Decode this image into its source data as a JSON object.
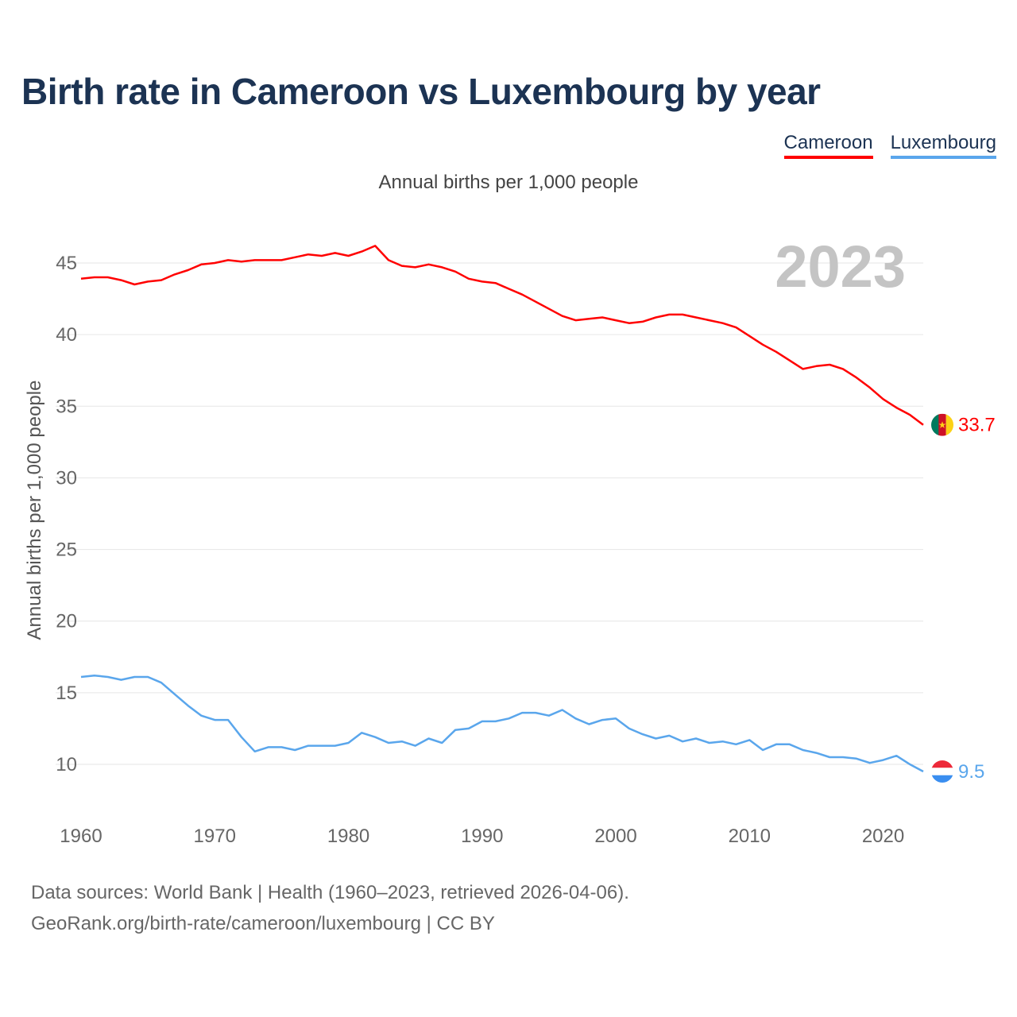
{
  "title": "Birth rate in Cameroon vs Luxembourg by year",
  "subtitle": "Annual births per 1,000 people",
  "legend": [
    {
      "label": "Cameroon",
      "color": "#ff0000"
    },
    {
      "label": "Luxembourg",
      "color": "#5aa6ec"
    }
  ],
  "year_watermark": "2023",
  "footer": {
    "line1": "Data sources: World Bank | Health (1960–2023, retrieved 2026-04-06).",
    "line2": "GeoRank.org/birth-rate/cameroon/luxembourg | CC BY"
  },
  "end_labels": {
    "cameroon": "33.7",
    "luxembourg": "9.5"
  },
  "chart_data": {
    "type": "line",
    "title": "Birth rate in Cameroon vs Luxembourg by year",
    "xlabel": "",
    "ylabel": "Annual births per 1,000 people",
    "xlim": [
      1960,
      2023
    ],
    "ylim": [
      7,
      48
    ],
    "yticks": [
      10,
      15,
      20,
      25,
      30,
      35,
      40,
      45
    ],
    "xticks": [
      1960,
      1970,
      1980,
      1990,
      2000,
      2010,
      2020
    ],
    "grid": true,
    "legend_position": "top-right",
    "x": [
      1960,
      1961,
      1962,
      1963,
      1964,
      1965,
      1966,
      1967,
      1968,
      1969,
      1970,
      1971,
      1972,
      1973,
      1974,
      1975,
      1976,
      1977,
      1978,
      1979,
      1980,
      1981,
      1982,
      1983,
      1984,
      1985,
      1986,
      1987,
      1988,
      1989,
      1990,
      1991,
      1992,
      1993,
      1994,
      1995,
      1996,
      1997,
      1998,
      1999,
      2000,
      2001,
      2002,
      2003,
      2004,
      2005,
      2006,
      2007,
      2008,
      2009,
      2010,
      2011,
      2012,
      2013,
      2014,
      2015,
      2016,
      2017,
      2018,
      2019,
      2020,
      2021,
      2022,
      2023
    ],
    "series": [
      {
        "name": "Cameroon",
        "color": "#ff0000",
        "values": [
          43.9,
          44.0,
          44.0,
          43.8,
          43.5,
          43.7,
          43.8,
          44.2,
          44.5,
          44.9,
          45.0,
          45.2,
          45.1,
          45.2,
          45.2,
          45.2,
          45.4,
          45.6,
          45.5,
          45.7,
          45.5,
          45.8,
          46.2,
          45.2,
          44.8,
          44.7,
          44.9,
          44.7,
          44.4,
          43.9,
          43.7,
          43.6,
          43.2,
          42.8,
          42.3,
          41.8,
          41.3,
          41.0,
          41.1,
          41.2,
          41.0,
          40.8,
          40.9,
          41.2,
          41.4,
          41.4,
          41.2,
          41.0,
          40.8,
          40.5,
          39.9,
          39.3,
          38.8,
          38.2,
          37.6,
          37.8,
          37.9,
          37.6,
          37.0,
          36.3,
          35.5,
          34.9,
          34.4,
          33.7
        ]
      },
      {
        "name": "Luxembourg",
        "color": "#5aa6ec",
        "values": [
          16.1,
          16.2,
          16.1,
          15.9,
          16.1,
          16.1,
          15.7,
          14.9,
          14.1,
          13.4,
          13.1,
          13.1,
          11.9,
          10.9,
          11.2,
          11.2,
          11.0,
          11.3,
          11.3,
          11.3,
          11.5,
          12.2,
          11.9,
          11.5,
          11.6,
          11.3,
          11.8,
          11.5,
          12.4,
          12.5,
          13.0,
          13.0,
          13.2,
          13.6,
          13.6,
          13.4,
          13.8,
          13.2,
          12.8,
          13.1,
          13.2,
          12.5,
          12.1,
          11.8,
          12.0,
          11.6,
          11.8,
          11.5,
          11.6,
          11.4,
          11.7,
          11.0,
          11.4,
          11.4,
          11.0,
          10.8,
          10.5,
          10.5,
          10.4,
          10.1,
          10.3,
          10.6,
          10.0,
          9.5
        ]
      }
    ]
  }
}
